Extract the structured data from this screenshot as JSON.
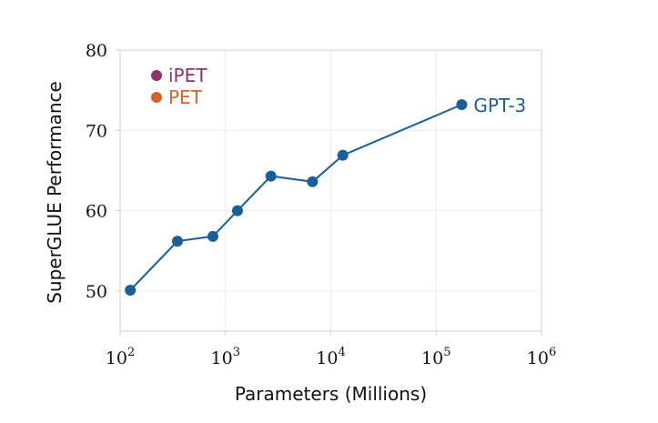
{
  "chart_data": {
    "type": "line",
    "xlabel": "Parameters (Millions)",
    "ylabel": "SuperGLUE Performance",
    "xscale": "log",
    "xlim": [
      100,
      1000000
    ],
    "ylim": [
      45,
      80
    ],
    "xticks": [
      {
        "value": 100,
        "base": "10",
        "exp": "2"
      },
      {
        "value": 1000,
        "base": "10",
        "exp": "3"
      },
      {
        "value": 10000,
        "base": "10",
        "exp": "4"
      },
      {
        "value": 100000,
        "base": "10",
        "exp": "5"
      },
      {
        "value": 1000000,
        "base": "10",
        "exp": "6"
      }
    ],
    "yticks": [
      {
        "value": 50,
        "label": "50"
      },
      {
        "value": 60,
        "label": "60"
      },
      {
        "value": 70,
        "label": "70"
      },
      {
        "value": 80,
        "label": "80"
      }
    ],
    "grid": true,
    "series": [
      {
        "name": "GPT-3",
        "color": "#1a5f98",
        "x": [
          125,
          350,
          760,
          1300,
          2700,
          6700,
          13000,
          175000
        ],
        "y": [
          50.1,
          56.2,
          56.8,
          60.0,
          64.3,
          63.6,
          66.9,
          73.2
        ]
      }
    ],
    "legend": {
      "placement": "top-left",
      "entries": [
        {
          "label": "iPET",
          "color": "#8e3269"
        },
        {
          "label": "PET",
          "color": "#d9622b"
        }
      ]
    },
    "annotations": [
      {
        "text": "GPT-3",
        "color": "#1a5f98",
        "anchor": "last-point"
      }
    ]
  }
}
